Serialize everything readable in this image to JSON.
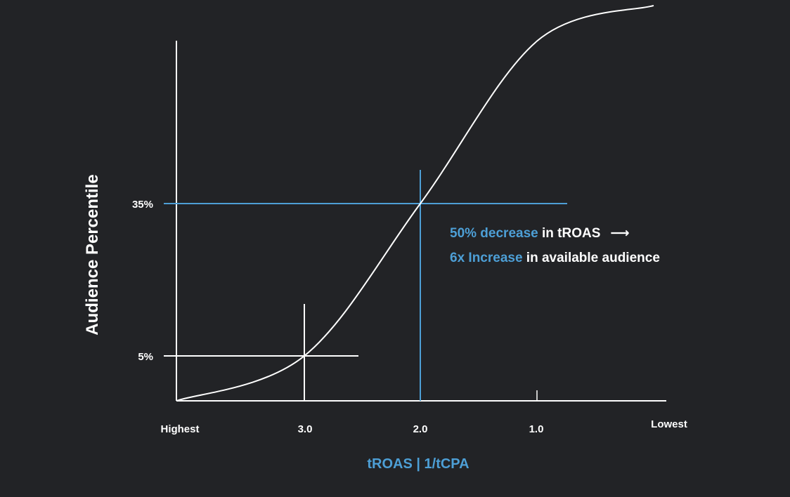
{
  "colors": {
    "background": "#222326",
    "axis": "#ffffff",
    "curve": "#ffffff",
    "accent": "#4d9fd6",
    "text": "#ffffff"
  },
  "chart_data": {
    "type": "line",
    "title": "",
    "xlabel": "tROAS | 1/tCPA",
    "ylabel": "Audience Percentile",
    "x_ticks": [
      "Highest",
      "3.0",
      "2.0",
      "1.0",
      "Lowest"
    ],
    "y_ticks": [
      "5%",
      "35%"
    ],
    "x_direction": "Highest to Lowest",
    "grid": false,
    "series": [
      {
        "points": [
          {
            "x": "Highest",
            "y": 0
          },
          {
            "x": "3.0",
            "y": 5
          },
          {
            "x": "2.0",
            "y": 35
          },
          {
            "x": "1.0",
            "y": 67
          },
          {
            "x": "Lowest",
            "y": 74
          }
        ]
      }
    ],
    "reference_points": [
      {
        "x": "3.0",
        "y": "5%",
        "color": "#ffffff"
      },
      {
        "x": "2.0",
        "y": "35%",
        "color": "#4d9fd6"
      }
    ],
    "annotations": [
      {
        "highlight": "50% decrease",
        "text": " in tROAS",
        "arrow": "⟶"
      },
      {
        "highlight": "6x Increase",
        "text": " in available audience"
      }
    ]
  }
}
